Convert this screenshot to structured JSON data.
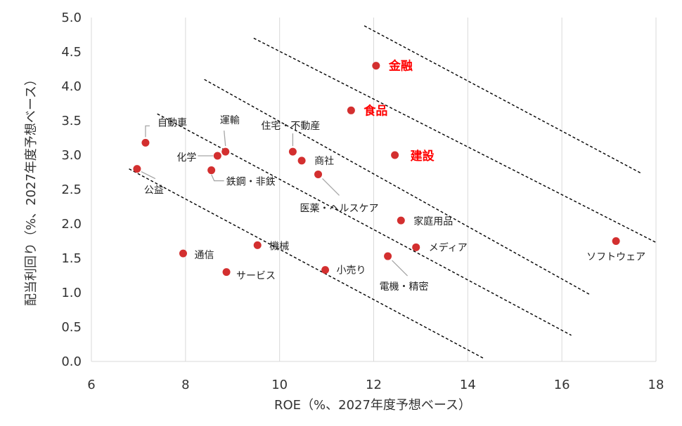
{
  "chart_data": {
    "type": "scatter",
    "title": "",
    "xlabel": "ROE（%、2027年度予想ベース）",
    "ylabel": "配当利回り（%、2027年度予想ベース）",
    "xlim": [
      6,
      18
    ],
    "ylim": [
      0,
      5
    ],
    "xticks": [
      "6",
      "8",
      "10",
      "12",
      "14",
      "16",
      "18"
    ],
    "yticks": [
      "0.0",
      "0.5",
      "1.0",
      "1.5",
      "2.0",
      "2.5",
      "3.0",
      "3.5",
      "4.0",
      "4.5",
      "5.0"
    ],
    "grid": "vertical",
    "marker_color": "#d32f2f",
    "highlight_color": "#ff0000",
    "points": [
      {
        "label": "金融",
        "x": 12.05,
        "y": 4.3,
        "highlight": true
      },
      {
        "label": "食品",
        "x": 11.52,
        "y": 3.65,
        "highlight": true
      },
      {
        "label": "建設",
        "x": 12.45,
        "y": 3.0,
        "highlight": true
      },
      {
        "label": "自動車",
        "x": 7.15,
        "y": 3.18
      },
      {
        "label": "運輸",
        "x": 8.85,
        "y": 3.05
      },
      {
        "label": "化学",
        "x": 8.68,
        "y": 2.99
      },
      {
        "label": "住宅・不動産",
        "x": 10.28,
        "y": 3.05
      },
      {
        "label": "商社",
        "x": 10.47,
        "y": 2.92
      },
      {
        "label": "鉄鋼・非鉄",
        "x": 8.55,
        "y": 2.78
      },
      {
        "label": "公益",
        "x": 6.97,
        "y": 2.8
      },
      {
        "label": "医薬・ヘルスケア",
        "x": 10.82,
        "y": 2.72
      },
      {
        "label": "家庭用品",
        "x": 12.58,
        "y": 2.05
      },
      {
        "label": "通信",
        "x": 7.95,
        "y": 1.57
      },
      {
        "label": "機械",
        "x": 9.53,
        "y": 1.69
      },
      {
        "label": "メディア",
        "x": 12.9,
        "y": 1.66
      },
      {
        "label": "電機・精密",
        "x": 12.3,
        "y": 1.53
      },
      {
        "label": "小売り",
        "x": 10.97,
        "y": 1.33
      },
      {
        "label": "サービス",
        "x": 8.87,
        "y": 1.3
      },
      {
        "label": "ソフトウェア",
        "x": 17.15,
        "y": 1.75
      }
    ],
    "reference_lines": [
      {
        "x": [
          11.8,
          17.7
        ],
        "y": [
          4.88,
          2.73
        ]
      },
      {
        "x": [
          9.45,
          18.0
        ],
        "y": [
          4.7,
          1.73
        ]
      },
      {
        "x": [
          8.4,
          16.6
        ],
        "y": [
          4.1,
          0.97
        ]
      },
      {
        "x": [
          7.4,
          16.2
        ],
        "y": [
          3.6,
          0.38
        ]
      },
      {
        "x": [
          6.8,
          14.35
        ],
        "y": [
          2.8,
          0.04
        ]
      }
    ]
  }
}
